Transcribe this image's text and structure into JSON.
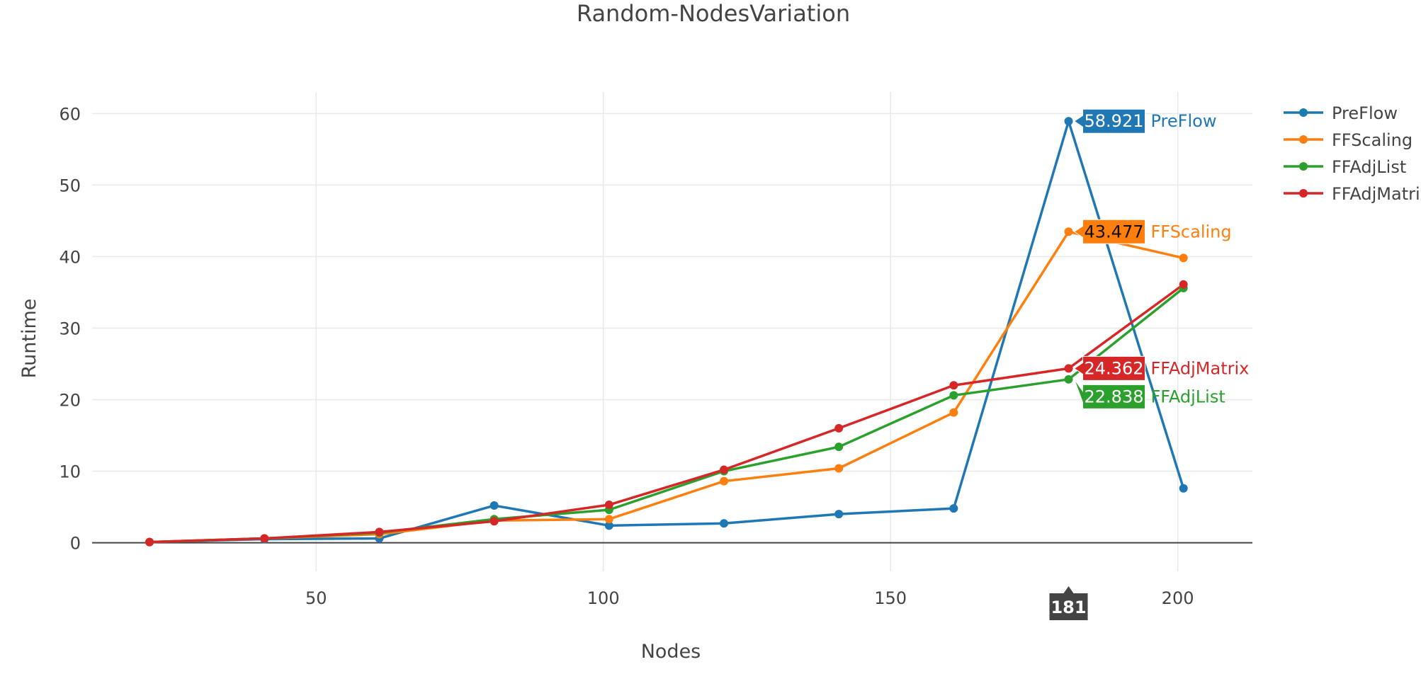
{
  "chart_data": {
    "type": "line",
    "title": "Random-NodesVariation",
    "xlabel": "Nodes",
    "ylabel": "Runtime",
    "xlim": [
      11,
      213
    ],
    "ylim": [
      -4,
      63
    ],
    "x_ticks": [
      "50",
      "100",
      "150",
      "200"
    ],
    "y_ticks": [
      "0",
      "10",
      "20",
      "30",
      "40",
      "50",
      "60"
    ],
    "grid": true,
    "legend_position": "top-right",
    "x": [
      21,
      41,
      61,
      81,
      101,
      121,
      141,
      161,
      181,
      201
    ],
    "series": [
      {
        "name": "PreFlow",
        "color": "#1f77b4",
        "values": [
          0.1,
          0.5,
          0.6,
          5.2,
          2.4,
          2.7,
          4.0,
          4.8,
          58.921,
          7.6
        ]
      },
      {
        "name": "FFScaling",
        "color": "#ff7f0e",
        "values": [
          0.1,
          0.6,
          1.2,
          3.1,
          3.3,
          8.6,
          10.4,
          18.2,
          43.477,
          39.8
        ]
      },
      {
        "name": "FFAdjList",
        "color": "#2ca02c",
        "values": [
          0.1,
          0.6,
          1.4,
          3.3,
          4.6,
          10.0,
          13.4,
          20.6,
          22.838,
          35.6
        ]
      },
      {
        "name": "FFAdjMatrix",
        "color": "#d62728",
        "values": [
          0.1,
          0.6,
          1.5,
          3.0,
          5.3,
          10.2,
          16.0,
          22.0,
          24.362,
          36.1
        ]
      }
    ],
    "hover": {
      "x_label": "181",
      "labels": [
        {
          "series": "PreFlow",
          "value": "58.921"
        },
        {
          "series": "FFScaling",
          "value": "43.477"
        },
        {
          "series": "FFAdjMatrix",
          "value": "24.362"
        },
        {
          "series": "FFAdjList",
          "value": "22.838"
        }
      ]
    }
  }
}
